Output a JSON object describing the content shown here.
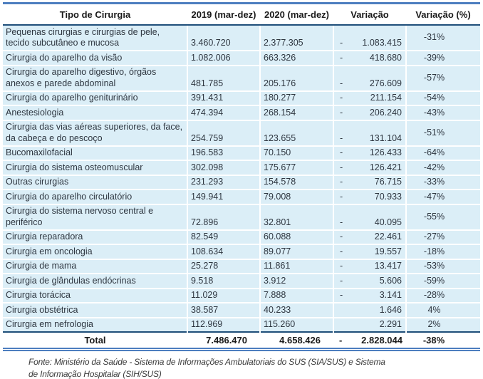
{
  "table": {
    "columns": [
      "Tipo de Cirurgia",
      "2019 (mar-dez)",
      "2020 (mar-dez)",
      "Variação",
      "Variação  (%)"
    ],
    "rows": [
      {
        "tipo": "Pequenas cirurgias e cirurgias de pele, tecido subcutâneo e mucosa",
        "v2019": "3.460.720",
        "v2020": "2.377.305",
        "neg": "-",
        "variacao": "1.083.415",
        "pct": "-31%"
      },
      {
        "tipo": "Cirurgia do aparelho da visão",
        "v2019": "1.082.006",
        "v2020": "663.326",
        "neg": "-",
        "variacao": "418.680",
        "pct": "-39%"
      },
      {
        "tipo": "Cirurgia do aparelho digestivo, órgãos anexos e parede abdominal",
        "v2019": "481.785",
        "v2020": "205.176",
        "neg": "-",
        "variacao": "276.609",
        "pct": "-57%"
      },
      {
        "tipo": "Cirurgia do aparelho geniturinário",
        "v2019": "391.431",
        "v2020": "180.277",
        "neg": "-",
        "variacao": "211.154",
        "pct": "-54%"
      },
      {
        "tipo": "Anestesiologia",
        "v2019": "474.394",
        "v2020": "268.154",
        "neg": "-",
        "variacao": "206.240",
        "pct": "-43%"
      },
      {
        "tipo": "Cirurgia das vias aéreas superiores, da face, da cabeça e do pescoço",
        "v2019": "254.759",
        "v2020": "123.655",
        "neg": "-",
        "variacao": "131.104",
        "pct": "-51%"
      },
      {
        "tipo": "Bucomaxilofacial",
        "v2019": "196.583",
        "v2020": "70.150",
        "neg": "-",
        "variacao": "126.433",
        "pct": "-64%"
      },
      {
        "tipo": "Cirurgia do sistema osteomuscular",
        "v2019": "302.098",
        "v2020": "175.677",
        "neg": "-",
        "variacao": "126.421",
        "pct": "-42%"
      },
      {
        "tipo": "Outras cirurgias",
        "v2019": "231.293",
        "v2020": "154.578",
        "neg": "-",
        "variacao": "76.715",
        "pct": "-33%"
      },
      {
        "tipo": "Cirurgia do aparelho circulatório",
        "v2019": "149.941",
        "v2020": "79.008",
        "neg": "-",
        "variacao": "70.933",
        "pct": "-47%"
      },
      {
        "tipo": "Cirurgia do sistema nervoso central e periférico",
        "v2019": "72.896",
        "v2020": "32.801",
        "neg": "-",
        "variacao": "40.095",
        "pct": "-55%"
      },
      {
        "tipo": "Cirurgia reparadora",
        "v2019": "82.549",
        "v2020": "60.088",
        "neg": "-",
        "variacao": "22.461",
        "pct": "-27%"
      },
      {
        "tipo": "Cirurgia em oncologia",
        "v2019": "108.634",
        "v2020": "89.077",
        "neg": "-",
        "variacao": "19.557",
        "pct": "-18%"
      },
      {
        "tipo": "Cirurgia de mama",
        "v2019": "25.278",
        "v2020": "11.861",
        "neg": "-",
        "variacao": "13.417",
        "pct": "-53%"
      },
      {
        "tipo": "Cirurgia de glândulas endócrinas",
        "v2019": "9.518",
        "v2020": "3.912",
        "neg": "-",
        "variacao": "5.606",
        "pct": "-59%"
      },
      {
        "tipo": "Cirurgia torácica",
        "v2019": "11.029",
        "v2020": "7.888",
        "neg": "-",
        "variacao": "3.141",
        "pct": "-28%"
      },
      {
        "tipo": "Cirurgia obstétrica",
        "v2019": "38.587",
        "v2020": "40.233",
        "neg": "",
        "variacao": "1.646",
        "pct": "4%"
      },
      {
        "tipo": "Cirurgia em nefrologia",
        "v2019": "112.969",
        "v2020": "115.260",
        "neg": "",
        "variacao": "2.291",
        "pct": "2%"
      }
    ],
    "total": {
      "tipo": "Total",
      "v2019": "7.486.470",
      "v2020": "4.658.426",
      "neg": "-",
      "variacao": "2.828.044",
      "pct": "-38%"
    }
  },
  "source": {
    "lines": [
      "Fonte: Ministério da Saúde - Sistema de Informações Ambulatoriais do SUS (SIA/SUS) e Sistema",
      "de Informação Hospitalar (SIH/SUS)"
    ]
  },
  "colors": {
    "row_fill": "#dbeef7",
    "grid_line": "#ffffff",
    "top_border": "#4d7ebf",
    "header_rule": "#1f4e79",
    "bottom_double": "#4d7ebf"
  }
}
